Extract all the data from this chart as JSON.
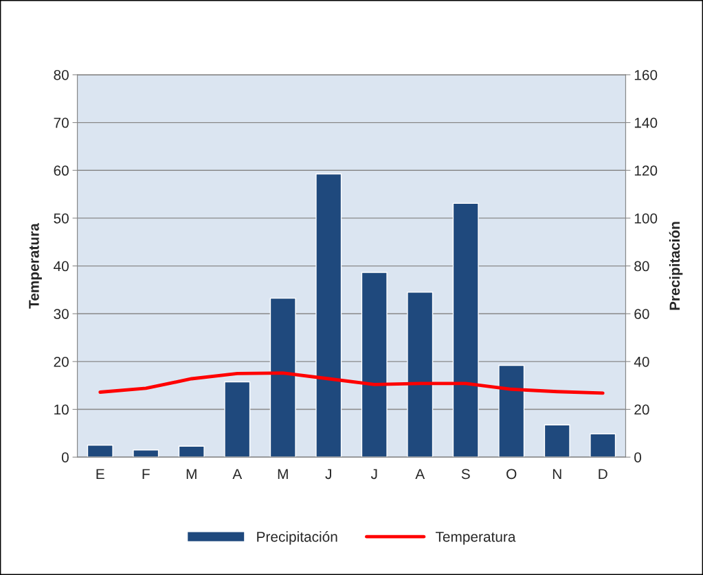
{
  "chart_data": {
    "type": "bar",
    "categories": [
      "E",
      "F",
      "M",
      "A",
      "M",
      "J",
      "J",
      "A",
      "S",
      "O",
      "N",
      "D"
    ],
    "ylabel": "Temperatura",
    "y2label": "Precipitación",
    "series": [
      {
        "name": "Precipitación",
        "axis": "y2",
        "color": "#1f497d",
        "values": [
          5,
          3,
          4.6,
          31.5,
          66.5,
          118.5,
          77.3,
          69,
          106.2,
          38.4,
          13.5,
          9.7
        ]
      },
      {
        "name": "Temperatura",
        "type": "line",
        "color": "#ff0000",
        "values": [
          13.6,
          14.4,
          16.4,
          17.5,
          17.6,
          16.4,
          15.2,
          15.4,
          15.4,
          14.2,
          13.7,
          13.4
        ]
      }
    ],
    "ylim": [
      0,
      80
    ],
    "yticks": [
      0,
      10,
      20,
      30,
      40,
      50,
      60,
      70,
      80
    ],
    "y2lim": [
      0,
      160
    ],
    "y2ticks": [
      0,
      20,
      40,
      60,
      80,
      100,
      120,
      140,
      160
    ],
    "grid": "y",
    "legend": "bottom",
    "marker": "none",
    "line_style": "solid"
  }
}
